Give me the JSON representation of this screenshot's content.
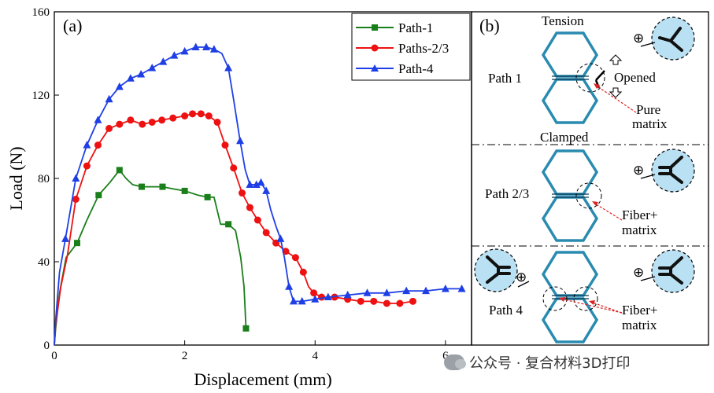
{
  "chart_data": {
    "type": "line",
    "panel_label": "(a)",
    "xlabel": "Displacement (mm)",
    "ylabel": "Load (N)",
    "xlim": [
      0,
      6.4
    ],
    "ylim": [
      0,
      160
    ],
    "xticks": [
      0,
      2,
      4,
      6
    ],
    "yticks": [
      0,
      40,
      80,
      120,
      160
    ],
    "legend_position": "top-right",
    "series": [
      {
        "name": "Path-1",
        "color": "#1a7f1a",
        "marker": "square",
        "points": [
          [
            0,
            0
          ],
          [
            0.02,
            8
          ],
          [
            0.08,
            25
          ],
          [
            0.18,
            42
          ],
          [
            0.35,
            49
          ],
          [
            0.5,
            60
          ],
          [
            0.68,
            72
          ],
          [
            0.85,
            78
          ],
          [
            1.0,
            84
          ],
          [
            1.1,
            80
          ],
          [
            1.2,
            77
          ],
          [
            1.34,
            76
          ],
          [
            1.5,
            76
          ],
          [
            1.66,
            76
          ],
          [
            1.82,
            75
          ],
          [
            2.0,
            74
          ],
          [
            2.2,
            72
          ],
          [
            2.35,
            71
          ],
          [
            2.45,
            71
          ],
          [
            2.55,
            58
          ],
          [
            2.67,
            58
          ],
          [
            2.78,
            55
          ],
          [
            2.86,
            42
          ],
          [
            2.91,
            28
          ],
          [
            2.94,
            8
          ]
        ],
        "marker_x": [
          0.35,
          0.68,
          1.0,
          1.34,
          1.66,
          2.0,
          2.35,
          2.67,
          2.94
        ]
      },
      {
        "name": "Paths-2/3",
        "color": "#ee1111",
        "marker": "circle",
        "points": [
          [
            0,
            0
          ],
          [
            0.02,
            10
          ],
          [
            0.1,
            28
          ],
          [
            0.2,
            43
          ],
          [
            0.33,
            70
          ],
          [
            0.5,
            86
          ],
          [
            0.67,
            96
          ],
          [
            0.84,
            104
          ],
          [
            1.0,
            106
          ],
          [
            1.17,
            108
          ],
          [
            1.35,
            106
          ],
          [
            1.5,
            107
          ],
          [
            1.65,
            108
          ],
          [
            1.82,
            109
          ],
          [
            2.0,
            110
          ],
          [
            2.12,
            111
          ],
          [
            2.25,
            111
          ],
          [
            2.37,
            110
          ],
          [
            2.5,
            107
          ],
          [
            2.62,
            96
          ],
          [
            2.75,
            85
          ],
          [
            2.88,
            73
          ],
          [
            3.0,
            66
          ],
          [
            3.12,
            60
          ],
          [
            3.25,
            54
          ],
          [
            3.4,
            49
          ],
          [
            3.55,
            45
          ],
          [
            3.7,
            42
          ],
          [
            3.82,
            35
          ],
          [
            3.9,
            28
          ],
          [
            3.98,
            25
          ],
          [
            4.1,
            23
          ],
          [
            4.3,
            23
          ],
          [
            4.5,
            22
          ],
          [
            4.7,
            21
          ],
          [
            4.9,
            21
          ],
          [
            5.1,
            20
          ],
          [
            5.3,
            20
          ],
          [
            5.5,
            21
          ]
        ],
        "marker_x": [
          0.33,
          0.5,
          0.67,
          0.84,
          1.0,
          1.17,
          1.35,
          1.5,
          1.65,
          1.82,
          2.0,
          2.12,
          2.25,
          2.37,
          2.5,
          2.62,
          2.75,
          2.88,
          3.0,
          3.12,
          3.25,
          3.4,
          3.55,
          3.7,
          3.82,
          3.98,
          4.1,
          4.3,
          4.5,
          4.7,
          4.9,
          5.1,
          5.3,
          5.5
        ]
      },
      {
        "name": "Path-4",
        "color": "#1f3fe6",
        "marker": "triangle",
        "points": [
          [
            0,
            0
          ],
          [
            0.02,
            12
          ],
          [
            0.08,
            35
          ],
          [
            0.17,
            51
          ],
          [
            0.33,
            80
          ],
          [
            0.5,
            96
          ],
          [
            0.67,
            108
          ],
          [
            0.84,
            118
          ],
          [
            1.0,
            124
          ],
          [
            1.17,
            128
          ],
          [
            1.33,
            130
          ],
          [
            1.5,
            133
          ],
          [
            1.67,
            136
          ],
          [
            1.84,
            139
          ],
          [
            2.0,
            141
          ],
          [
            2.17,
            143
          ],
          [
            2.33,
            143
          ],
          [
            2.45,
            142
          ],
          [
            2.57,
            140
          ],
          [
            2.67,
            133
          ],
          [
            2.75,
            118
          ],
          [
            2.85,
            98
          ],
          [
            2.93,
            84
          ],
          [
            3.0,
            77
          ],
          [
            3.1,
            77
          ],
          [
            3.17,
            78
          ],
          [
            3.25,
            74
          ],
          [
            3.32,
            65
          ],
          [
            3.4,
            57
          ],
          [
            3.47,
            51
          ],
          [
            3.53,
            42
          ],
          [
            3.6,
            28
          ],
          [
            3.67,
            21
          ],
          [
            3.8,
            21
          ],
          [
            4.0,
            22
          ],
          [
            4.2,
            23
          ],
          [
            4.5,
            24
          ],
          [
            4.8,
            25
          ],
          [
            5.1,
            25
          ],
          [
            5.4,
            26
          ],
          [
            5.7,
            26
          ],
          [
            6.0,
            27
          ],
          [
            6.25,
            27
          ]
        ],
        "marker_x": [
          0.17,
          0.33,
          0.5,
          0.67,
          0.84,
          1.0,
          1.17,
          1.33,
          1.5,
          1.67,
          1.84,
          2.0,
          2.17,
          2.33,
          2.45,
          2.67,
          2.85,
          3.0,
          3.1,
          3.17,
          3.25,
          3.47,
          3.6,
          3.67,
          3.8,
          4.0,
          4.2,
          4.5,
          4.8,
          5.1,
          5.4,
          5.7,
          6.0,
          6.25
        ]
      }
    ]
  },
  "schematic": {
    "panel_label": "(b)",
    "top_label": "Tension",
    "bottom_label": "Clamped",
    "rows": [
      {
        "path_label": "Path 1",
        "notes": [
          "Opened",
          "Pure",
          "matrix"
        ]
      },
      {
        "path_label": "Path 2/3",
        "notes": [
          "Fiber+",
          "matrix"
        ]
      },
      {
        "path_label": "Path 4",
        "notes": [
          "Fiber+",
          "matrix"
        ]
      }
    ],
    "force_symbol": "⊕",
    "colors": {
      "cell_stroke": "#2a8bb0",
      "circle_fill": "#b9e1f3",
      "arrow": "#e02020"
    }
  },
  "watermark": {
    "text": "公众号 · 复合材料3D打印"
  }
}
